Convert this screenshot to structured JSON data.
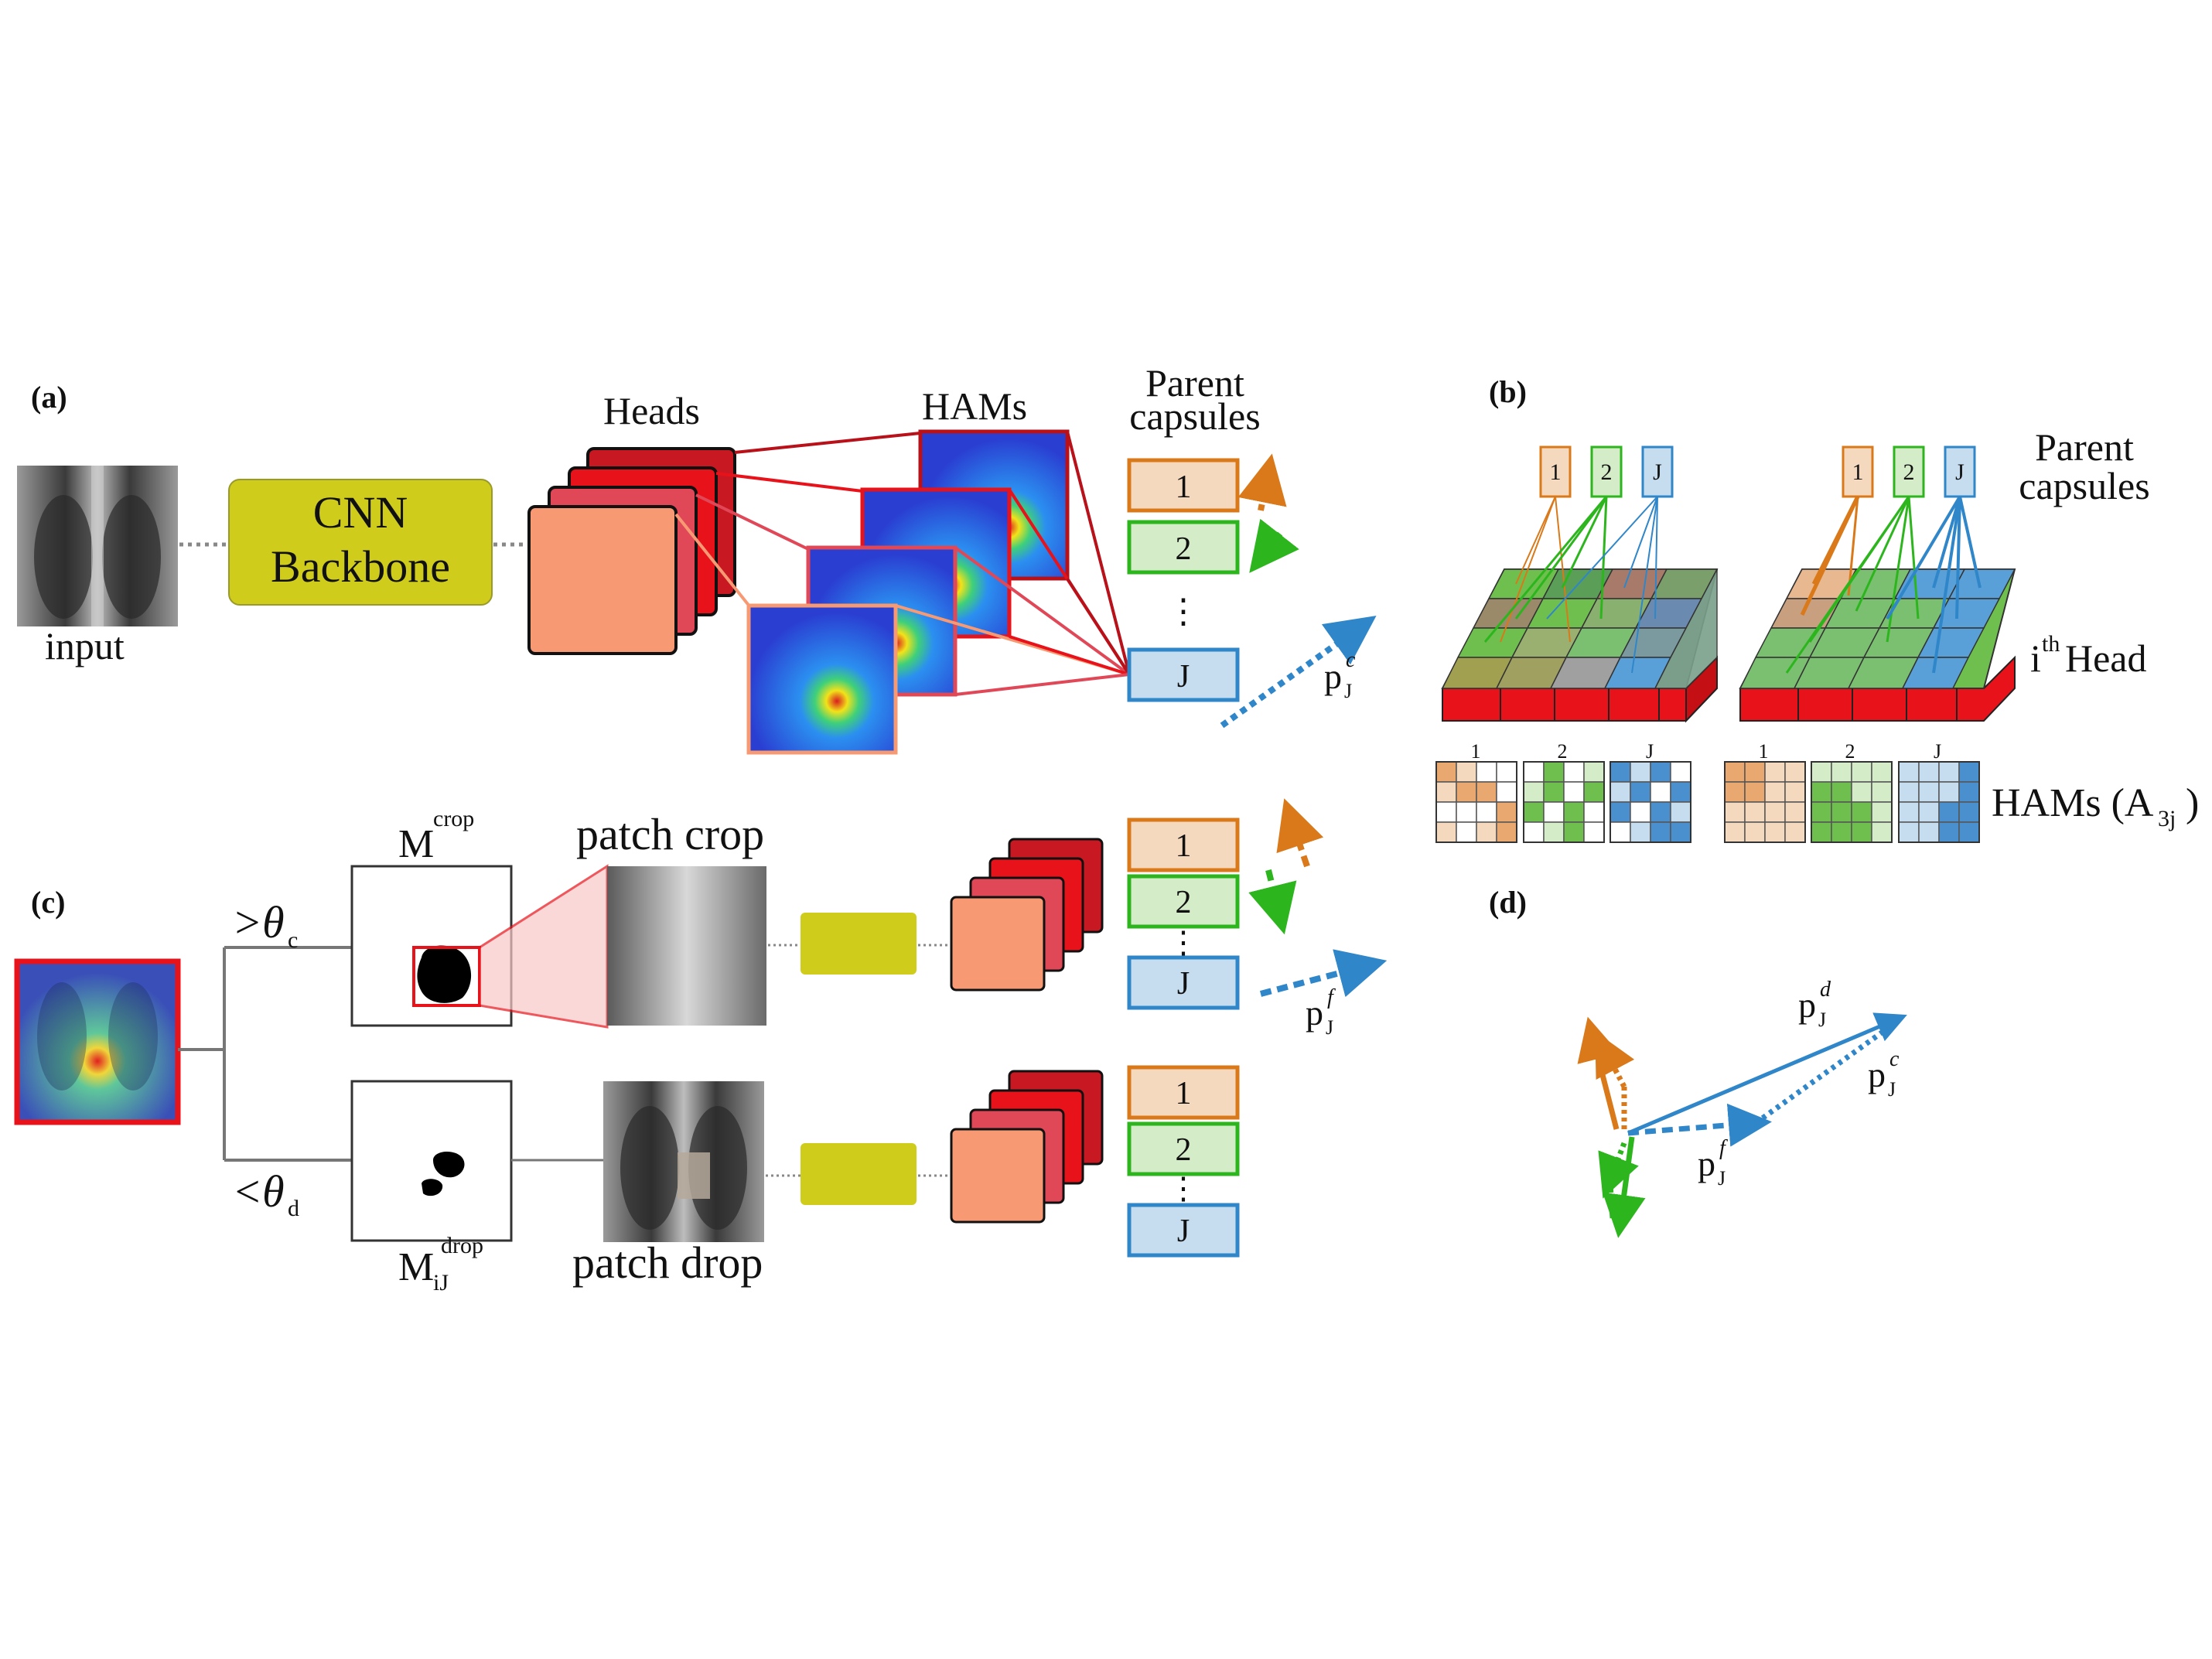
{
  "panels": {
    "a": "(a)",
    "b": "(b)",
    "c": "(c)",
    "d": "(d)"
  },
  "panel_a": {
    "input_label": "input",
    "backbone_line1": "CNN",
    "backbone_line2": "Backbone",
    "heads_label": "Heads",
    "hams_label": "HAMs",
    "parent_line1": "Parent",
    "parent_line2": "capsules",
    "caps": [
      "1",
      "2",
      "J"
    ],
    "ellipsis": "⋮",
    "pc_base": "p",
    "pc_sub": "J",
    "pc_sup": "c"
  },
  "panel_b": {
    "caps": [
      "1",
      "2",
      "J"
    ],
    "parent_line1": "Parent",
    "parent_line2": "capsules",
    "head_pre": "i",
    "head_sup": "th",
    "head_post": " Head",
    "ham_idx": [
      "1",
      "2",
      "J"
    ],
    "hams_pre": "HAMs (A",
    "hams_sub": "3j",
    "hams_post": ")"
  },
  "panel_c": {
    "gt_sym": ">θ",
    "gt_sub": "c",
    "lt_sym": "<θ",
    "lt_sub": "d",
    "mcrop_base": "M",
    "mcrop_sup": "crop",
    "mdrop_base": "M",
    "mdrop_sub": "iJ",
    "mdrop_sup": "drop",
    "patch_crop": "patch crop",
    "patch_drop": "patch drop",
    "caps": [
      "1",
      "2",
      "J"
    ],
    "caps2": [
      "1",
      "2",
      "J"
    ],
    "ellipsis": "⋮",
    "pf_base": "p",
    "pf_sub": "J",
    "pf_sup": "f"
  },
  "panel_d": {
    "pd_base": "p",
    "pd_sub": "J",
    "pd_sup": "d",
    "pc_base": "p",
    "pc_sub": "J",
    "pc_sup": "c",
    "pf_base": "p",
    "pf_sub": "J",
    "pf_sup": "f"
  },
  "colors": {
    "orange": "#d9791a",
    "orange_fill": "#f5d9bf",
    "green": "#2db51e",
    "green_fill": "#d5ecc8",
    "blue": "#2f86c9",
    "blue_fill": "#c5ddef",
    "backbone": "#cfcc1c",
    "head_salmon": "#f79a74",
    "head_red": "#e8121a"
  }
}
